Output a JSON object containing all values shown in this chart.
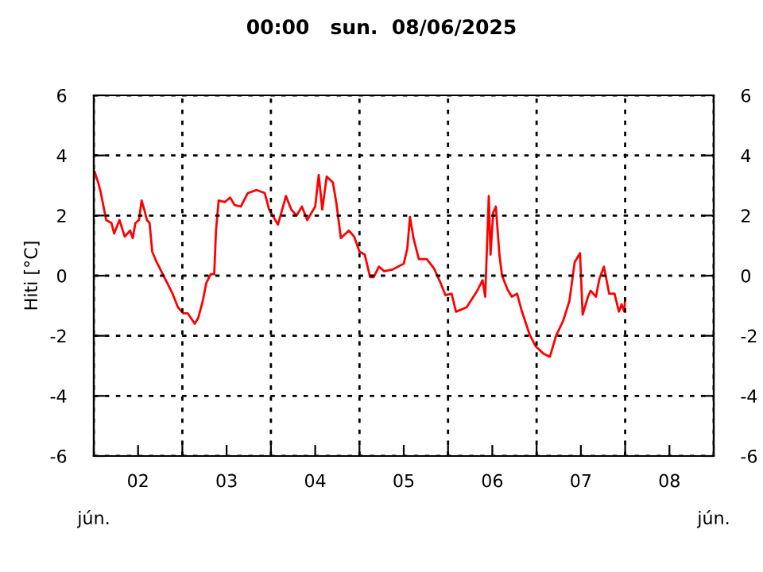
{
  "chart_data": {
    "type": "line",
    "title": "00:00   sun.  08/06/2025",
    "ylabel": "Hiti [°C]",
    "series": [
      {
        "color": "#ff0000",
        "x": [
          2.01,
          2.05,
          2.08,
          2.11,
          2.14,
          2.2,
          2.23,
          2.29,
          2.35,
          2.41,
          2.44,
          2.47,
          2.51,
          2.54,
          2.57,
          2.6,
          2.63,
          2.66,
          2.71,
          2.77,
          2.83,
          2.89,
          2.95,
          3.01,
          3.06,
          3.14,
          3.18,
          3.23,
          3.27,
          3.32,
          3.36,
          3.38,
          3.41,
          3.48,
          3.54,
          3.59,
          3.66,
          3.74,
          3.84,
          3.93,
          3.98,
          4.08,
          4.17,
          4.23,
          4.29,
          4.35,
          4.41,
          4.5,
          4.54,
          4.58,
          4.63,
          4.7,
          4.74,
          4.79,
          4.88,
          4.94,
          5.0,
          5.06,
          5.12,
          5.16,
          5.22,
          5.28,
          5.37,
          5.5,
          5.54,
          5.57,
          5.61,
          5.67,
          5.76,
          5.84,
          5.91,
          5.97,
          6.04,
          6.09,
          6.21,
          6.33,
          6.39,
          6.42,
          6.46,
          6.48,
          6.51,
          6.54,
          6.58,
          6.61,
          6.67,
          6.72,
          6.78,
          6.83,
          6.92,
          6.99,
          7.08,
          7.15,
          7.22,
          7.3,
          7.37,
          7.43,
          7.49,
          7.52,
          7.58,
          7.61,
          7.67,
          7.71,
          7.76,
          7.82,
          7.88,
          7.93,
          7.96,
          7.99,
          8.0
        ],
        "values": [
          3.45,
          3.1,
          2.75,
          2.3,
          1.85,
          1.75,
          1.4,
          1.85,
          1.3,
          1.5,
          1.25,
          1.75,
          1.85,
          2.5,
          2.2,
          1.85,
          1.75,
          0.8,
          0.45,
          0.1,
          -0.25,
          -0.6,
          -1.05,
          -1.25,
          -1.25,
          -1.6,
          -1.4,
          -0.85,
          -0.25,
          0.05,
          0.05,
          1.5,
          2.5,
          2.45,
          2.6,
          2.35,
          2.3,
          2.75,
          2.85,
          2.75,
          2.2,
          1.7,
          2.65,
          2.2,
          2.0,
          2.3,
          1.85,
          2.3,
          3.35,
          2.2,
          3.3,
          3.1,
          2.4,
          1.25,
          1.5,
          1.3,
          0.8,
          0.7,
          -0.05,
          -0.05,
          0.3,
          0.15,
          0.2,
          0.4,
          0.9,
          1.95,
          1.25,
          0.55,
          0.55,
          0.25,
          -0.2,
          -0.65,
          -0.6,
          -1.2,
          -1.05,
          -0.5,
          -0.15,
          -0.7,
          2.65,
          0.7,
          2.1,
          2.3,
          0.7,
          0,
          -0.45,
          -0.7,
          -0.6,
          -1.15,
          -1.95,
          -2.35,
          -2.6,
          -2.7,
          -2.0,
          -1.5,
          -0.85,
          0.45,
          0.75,
          -1.3,
          -0.7,
          -0.5,
          -0.7,
          -0.1,
          0.3,
          -0.6,
          -0.6,
          -1.2,
          -0.95,
          -1.2,
          -0.75
        ]
      }
    ],
    "xlim": [
      2,
      9
    ],
    "xticks": [
      {
        "value": 2,
        "label": null
      },
      {
        "value": 2.5,
        "label": "02"
      },
      {
        "value": 3,
        "label": null
      },
      {
        "value": 3.5,
        "label": "03"
      },
      {
        "value": 4,
        "label": null
      },
      {
        "value": 4.5,
        "label": "04"
      },
      {
        "value": 5,
        "label": null
      },
      {
        "value": 5.5,
        "label": "05"
      },
      {
        "value": 6,
        "label": null
      },
      {
        "value": 6.5,
        "label": "06"
      },
      {
        "value": 7,
        "label": null
      },
      {
        "value": 7.5,
        "label": "07"
      },
      {
        "value": 8,
        "label": null
      },
      {
        "value": 8.5,
        "label": "08"
      },
      {
        "value": 9,
        "label": null
      }
    ],
    "ylim": [
      -6,
      6
    ],
    "yticks": [
      -6,
      -4,
      -2,
      0,
      2,
      4,
      6
    ],
    "y2lim": [
      -6,
      6
    ],
    "y2ticks": [
      -6,
      -4,
      -2,
      0,
      2,
      4,
      6
    ],
    "grid": true,
    "line_style": "solid",
    "annotations": [
      "jún.",
      "jún."
    ]
  }
}
